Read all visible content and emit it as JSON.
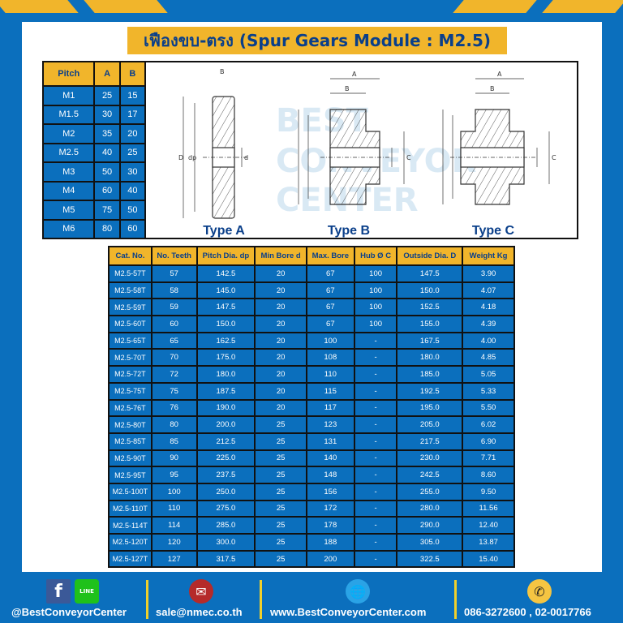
{
  "title": "เฟืองขบ-ตรง (Spur Gears Module : M2.5)",
  "pitch_table": {
    "headers": [
      "Pitch",
      "A",
      "B"
    ],
    "rows": [
      [
        "M1",
        "25",
        "15"
      ],
      [
        "M1.5",
        "30",
        "17"
      ],
      [
        "M2",
        "35",
        "20"
      ],
      [
        "M2.5",
        "40",
        "25"
      ],
      [
        "M3",
        "50",
        "30"
      ],
      [
        "M4",
        "60",
        "40"
      ],
      [
        "M5",
        "75",
        "50"
      ],
      [
        "M6",
        "80",
        "60"
      ]
    ]
  },
  "diagram": {
    "types": [
      "Type A",
      "Type B",
      "Type C"
    ],
    "labels": {
      "A": "A",
      "B": "B",
      "C": "C",
      "D": "D",
      "dp": "dp",
      "d": "d"
    }
  },
  "spec_table": {
    "headers": [
      "Cat. No.",
      "No. Teeth",
      "Pitch Dia. dp",
      "Min Bore d",
      "Max. Bore",
      "Hub Ø C",
      "Outside Dia. D",
      "Weight Kg"
    ],
    "rows": [
      [
        "M2.5-57T",
        "57",
        "142.5",
        "20",
        "67",
        "100",
        "147.5",
        "3.90"
      ],
      [
        "M2.5-58T",
        "58",
        "145.0",
        "20",
        "67",
        "100",
        "150.0",
        "4.07"
      ],
      [
        "M2.5-59T",
        "59",
        "147.5",
        "20",
        "67",
        "100",
        "152.5",
        "4.18"
      ],
      [
        "M2.5-60T",
        "60",
        "150.0",
        "20",
        "67",
        "100",
        "155.0",
        "4.39"
      ],
      [
        "M2.5-65T",
        "65",
        "162.5",
        "20",
        "100",
        "-",
        "167.5",
        "4.00"
      ],
      [
        "M2.5-70T",
        "70",
        "175.0",
        "20",
        "108",
        "-",
        "180.0",
        "4.85"
      ],
      [
        "M2.5-72T",
        "72",
        "180.0",
        "20",
        "110",
        "-",
        "185.0",
        "5.05"
      ],
      [
        "M2.5-75T",
        "75",
        "187.5",
        "20",
        "115",
        "-",
        "192.5",
        "5.33"
      ],
      [
        "M2.5-76T",
        "76",
        "190.0",
        "20",
        "117",
        "-",
        "195.0",
        "5.50"
      ],
      [
        "M2.5-80T",
        "80",
        "200.0",
        "25",
        "123",
        "-",
        "205.0",
        "6.02"
      ],
      [
        "M2.5-85T",
        "85",
        "212.5",
        "25",
        "131",
        "-",
        "217.5",
        "6.90"
      ],
      [
        "M2.5-90T",
        "90",
        "225.0",
        "25",
        "140",
        "-",
        "230.0",
        "7.71"
      ],
      [
        "M2.5-95T",
        "95",
        "237.5",
        "25",
        "148",
        "-",
        "242.5",
        "8.60"
      ],
      [
        "M2.5-100T",
        "100",
        "250.0",
        "25",
        "156",
        "-",
        "255.0",
        "9.50"
      ],
      [
        "M2.5-110T",
        "110",
        "275.0",
        "25",
        "172",
        "-",
        "280.0",
        "11.56"
      ],
      [
        "M2.5-114T",
        "114",
        "285.0",
        "25",
        "178",
        "-",
        "290.0",
        "12.40"
      ],
      [
        "M2.5-120T",
        "120",
        "300.0",
        "25",
        "188",
        "-",
        "305.0",
        "13.87"
      ],
      [
        "M2.5-127T",
        "127",
        "317.5",
        "25",
        "200",
        "-",
        "322.5",
        "15.40"
      ]
    ]
  },
  "footer": {
    "social": "@BestConveyorCenter",
    "email": "sale@nmec.co.th",
    "website": "www.BestConveyorCenter.com",
    "phone": "086-3272600 , 02-0017766",
    "line_label": "LINE"
  },
  "colors": {
    "brand_blue": "#0b6fbd",
    "accent_yellow": "#f1b52b"
  },
  "watermark": "BEST CONVEYOR CENTER"
}
